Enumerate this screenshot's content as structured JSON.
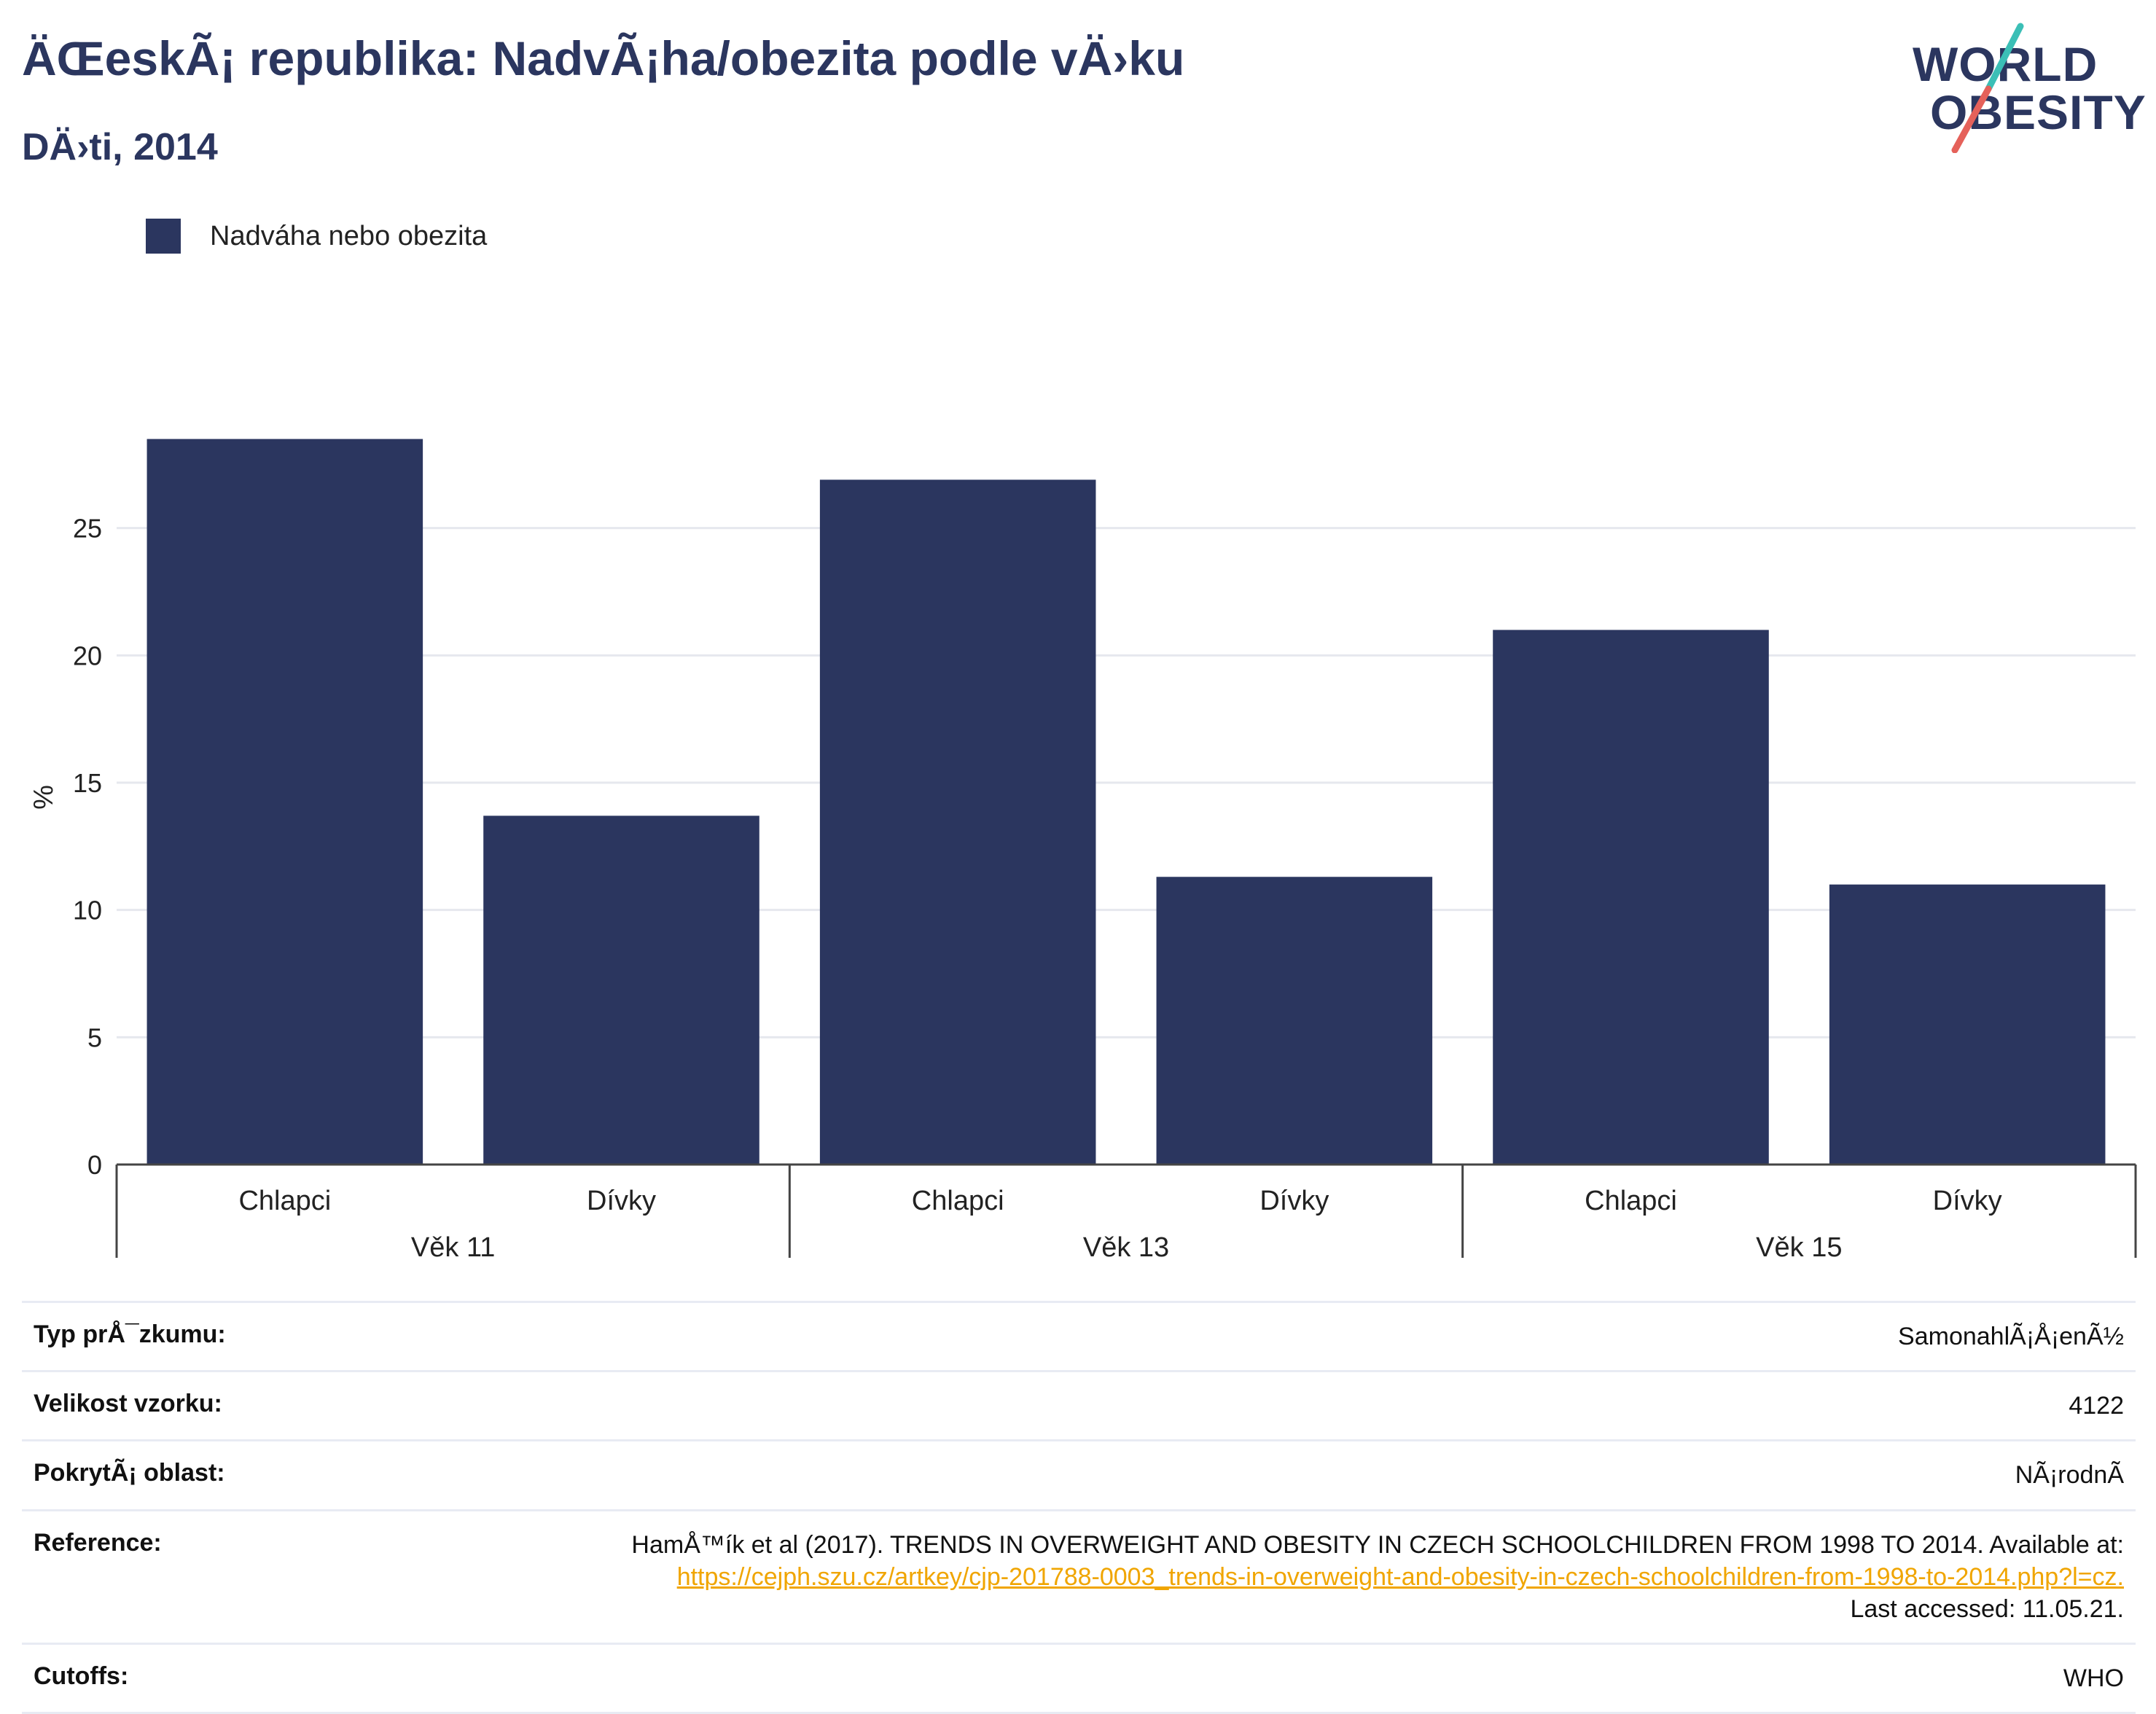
{
  "header": {
    "title": "ÄŒeskÃ¡ republika: NadvÃ¡ha/obezita podle vÄ›ku",
    "subtitle": "DÄ›ti, 2014"
  },
  "logo": {
    "line1": "WORLD",
    "line2": "OBESITY",
    "slash_colors": [
      "#3bbfb6",
      "#e5615a"
    ]
  },
  "legend": {
    "series_label": "Nadváha nebo obezita",
    "color": "#2b365f"
  },
  "chart_data": {
    "type": "bar",
    "ylabel": "%",
    "ylim": [
      0,
      30
    ],
    "yticks": [
      0,
      5,
      10,
      15,
      20,
      25
    ],
    "grid": true,
    "legend_position": "top-left",
    "bar_color": "#2b365f",
    "groups": [
      "Věk 11",
      "Věk 13",
      "Věk 15"
    ],
    "categories": [
      "Chlapci",
      "Dívky",
      "Chlapci",
      "Dívky",
      "Chlapci",
      "Dívky"
    ],
    "series": [
      {
        "name": "Nadváha nebo obezita",
        "values": [
          28.5,
          13.7,
          26.9,
          11.3,
          21.0,
          11.0
        ]
      }
    ]
  },
  "info": {
    "survey_type": {
      "label": "Typ prÅ¯zkumu:",
      "value": "SamonahlÃ¡Å¡enÃ½"
    },
    "sample_size": {
      "label": "Velikost vzorku:",
      "value": "4122"
    },
    "coverage": {
      "label": "PokrytÃ¡ oblast:",
      "value": "NÃ¡rodnÃ"
    },
    "reference": {
      "label": "Reference:",
      "text": "HamÅ™ík et al (2017). TRENDS IN OVERWEIGHT AND OBESITY IN CZECH SCHOOLCHILDREN FROM 1998 TO 2014. Available at:",
      "link": "https://cejph.szu.cz/artkey/cjp-201788-0003_trends-in-overweight-and-obesity-in-czech-schoolchildren-from-1998-to-2014.php?l=cz.",
      "accessed": "Last accessed: 11.05.21."
    },
    "cutoffs": {
      "label": "Cutoffs:",
      "value": "WHO"
    }
  }
}
